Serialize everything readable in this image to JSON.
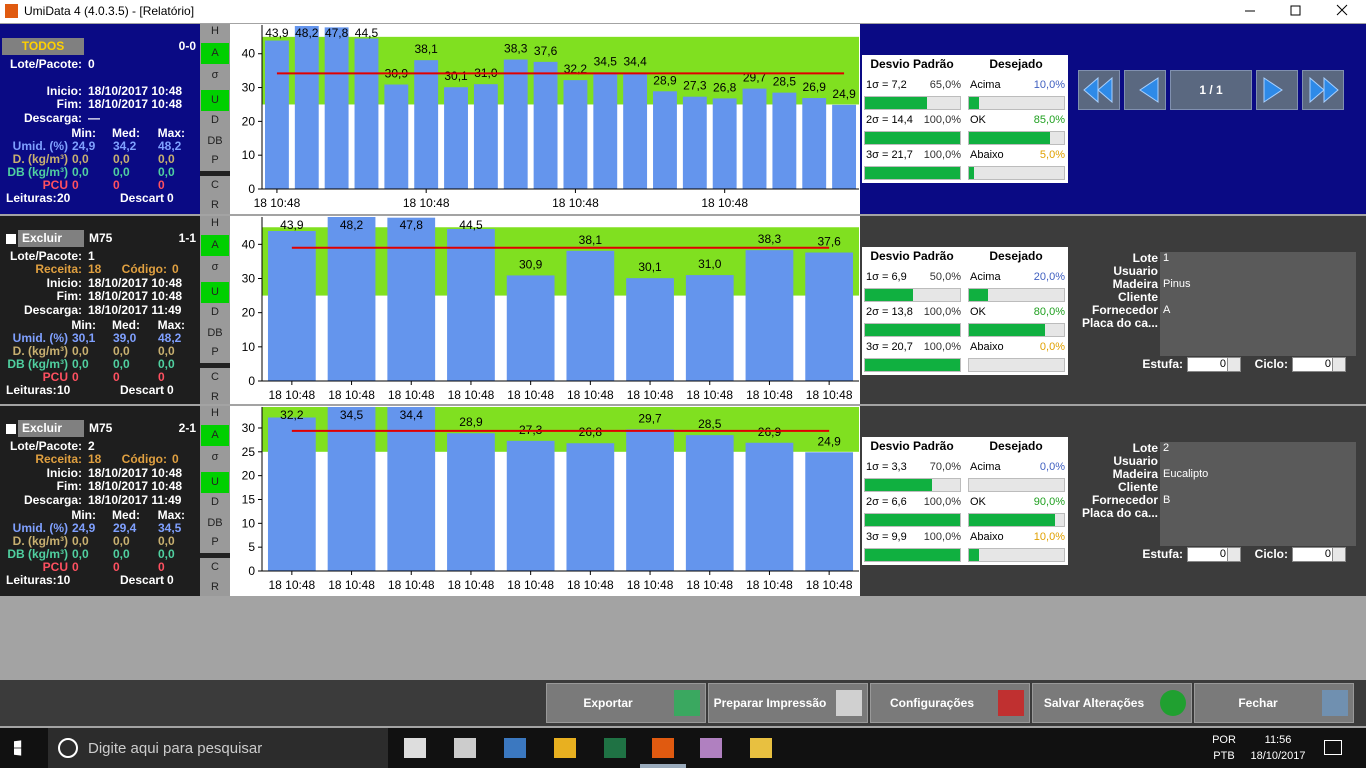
{
  "window": {
    "title": "UmiData 4 (4.0.3.5) - [Relatório]"
  },
  "nav": {
    "page": "1 / 1"
  },
  "side_buttons": [
    "H",
    "A",
    "σ",
    "U",
    "D",
    "DB",
    "P",
    "C",
    "R"
  ],
  "panels": [
    {
      "header": "TODOS",
      "code": "0-0",
      "fields": [
        {
          "label": "Lote/Pacote:",
          "value": "0"
        },
        {
          "label": "Inicio:",
          "value": "18/10/2017 10:48"
        },
        {
          "label": "Fim:",
          "value": "18/10/2017 10:48"
        },
        {
          "label": "Descarga:",
          "value": "—"
        }
      ],
      "stats": {
        "headers": [
          "Min:",
          "Med:",
          "Max:"
        ],
        "rows": [
          {
            "label": "Umid. (%)",
            "color": "#7fa0ff",
            "values": [
              "24,9",
              "34,2",
              "48,2"
            ]
          },
          {
            "label": "D. (kg/m³)",
            "color": "#c8b070",
            "values": [
              "0,0",
              "0,0",
              "0,0"
            ]
          },
          {
            "label": "DB (kg/m³)",
            "color": "#50d0a0",
            "values": [
              "0,0",
              "0,0",
              "0,0"
            ]
          },
          {
            "label": "PCU",
            "color": "#ff5060",
            "values": [
              "0",
              "0",
              "0"
            ]
          }
        ]
      },
      "readings": {
        "label": "Leituras:",
        "value": "20"
      },
      "discard": {
        "label": "Descart",
        "value": "0"
      },
      "chart": {
        "type": "bar",
        "categories": [
          "18 10:48",
          null,
          null,
          null,
          null,
          "18 10:48",
          null,
          null,
          null,
          null,
          "18 10:48",
          null,
          null,
          null,
          null,
          "18 10:48",
          null,
          null,
          null,
          null
        ],
        "values": [
          43.9,
          48.2,
          47.8,
          44.5,
          30.9,
          38.1,
          30.1,
          31.0,
          38.3,
          37.6,
          32.2,
          34.5,
          34.4,
          28.9,
          27.3,
          26.8,
          29.7,
          28.5,
          26.9,
          24.9
        ],
        "value_labels": [
          "43,9",
          "48,2",
          "47,8",
          "44,5",
          "30,9",
          "38,1",
          "30,1",
          "31,0",
          "38,3",
          "37,6",
          "32,2",
          "34,5",
          "34,4",
          "28,9",
          "27,3",
          "26,8",
          "29,7",
          "28,5",
          "26,9",
          "24,9"
        ],
        "color": "#6495ed",
        "ylim": [
          0,
          48.5
        ],
        "yticks": [
          0,
          10,
          20,
          30,
          40
        ],
        "band": [
          25,
          45
        ],
        "band_color": "#80e020",
        "mean": 34.2,
        "mean_color": "#e00000"
      },
      "deviation": {
        "headers": [
          "Desvio Padrão",
          "Desejado"
        ],
        "sigma": [
          {
            "label": "1σ = 7,2",
            "pct": 65,
            "pct_label": "65,0%"
          },
          {
            "label": "2σ = 14,4",
            "pct": 100,
            "pct_label": "100,0%"
          },
          {
            "label": "3σ = 21,7",
            "pct": 100,
            "pct_label": "100,0%"
          }
        ],
        "desired": [
          {
            "label": "Acima",
            "pct": 10,
            "pct_label": "10,0%",
            "color": "#4060c0"
          },
          {
            "label": "OK",
            "pct": 85,
            "pct_label": "85,0%",
            "color": "#20a020"
          },
          {
            "label": "Abaixo",
            "pct": 5,
            "pct_label": "5,0%",
            "color": "#e0a000"
          }
        ]
      }
    },
    {
      "exclude": "Excluir",
      "header": "M75",
      "code": "1-1",
      "fields": [
        {
          "label": "Lote/Pacote:",
          "value": "1"
        },
        {
          "label": "Inicio:",
          "value": "18/10/2017 10:48"
        },
        {
          "label": "Fim:",
          "value": "18/10/2017 10:48"
        },
        {
          "label": "Descarga:",
          "value": "18/10/2017 11:49"
        }
      ],
      "extra": [
        {
          "label": "Receita:",
          "value": "18"
        },
        {
          "label": "Código:",
          "value": "0"
        }
      ],
      "stats": {
        "headers": [
          "Min:",
          "Med:",
          "Max:"
        ],
        "rows": [
          {
            "label": "Umid. (%)",
            "color": "#7fa0ff",
            "values": [
              "30,1",
              "39,0",
              "48,2"
            ]
          },
          {
            "label": "D. (kg/m³)",
            "color": "#c8b070",
            "values": [
              "0,0",
              "0,0",
              "0,0"
            ]
          },
          {
            "label": "DB (kg/m³)",
            "color": "#50d0a0",
            "values": [
              "0,0",
              "0,0",
              "0,0"
            ]
          },
          {
            "label": "PCU",
            "color": "#ff5060",
            "values": [
              "0",
              "0",
              "0"
            ]
          }
        ]
      },
      "readings": {
        "label": "Leituras:",
        "value": "10"
      },
      "discard": {
        "label": "Descart",
        "value": "0"
      },
      "chart": {
        "type": "bar",
        "categories": [
          "18 10:48",
          "18 10:48",
          "18 10:48",
          "18 10:48",
          "18 10:48",
          "18 10:48",
          "18 10:48",
          "18 10:48",
          "18 10:48",
          "18 10:48"
        ],
        "values": [
          43.9,
          48.2,
          47.8,
          44.5,
          30.9,
          38.1,
          30.1,
          31.0,
          38.3,
          37.6
        ],
        "value_labels": [
          "43,9",
          "48,2",
          "47,8",
          "44,5",
          "30,9",
          "38,1",
          "30,1",
          "31,0",
          "38,3",
          "37,6"
        ],
        "color": "#6495ed",
        "ylim": [
          0,
          48
        ],
        "yticks": [
          0,
          10,
          20,
          30,
          40
        ],
        "band": [
          25,
          45
        ],
        "band_color": "#80e020",
        "mean": 39.0,
        "mean_color": "#e00000"
      },
      "deviation": {
        "headers": [
          "Desvio Padrão",
          "Desejado"
        ],
        "sigma": [
          {
            "label": "1σ = 6,9",
            "pct": 50,
            "pct_label": "50,0%"
          },
          {
            "label": "2σ = 13,8",
            "pct": 100,
            "pct_label": "100,0%"
          },
          {
            "label": "3σ = 20,7",
            "pct": 100,
            "pct_label": "100,0%"
          }
        ],
        "desired": [
          {
            "label": "Acima",
            "pct": 20,
            "pct_label": "20,0%",
            "color": "#4060c0"
          },
          {
            "label": "OK",
            "pct": 80,
            "pct_label": "80,0%",
            "color": "#20a020"
          },
          {
            "label": "Abaixo",
            "pct": 0,
            "pct_label": "0,0%",
            "color": "#e0a000"
          }
        ]
      },
      "info": [
        {
          "label": "Lote",
          "value": "1"
        },
        {
          "label": "Usuario"
        },
        {
          "label": "Madeira",
          "value": "Pinus"
        },
        {
          "label": "Cliente"
        },
        {
          "label": "Fornecedor",
          "value": "A"
        },
        {
          "label": "Placa do ca..."
        }
      ],
      "kiln": {
        "label": "Estufa:",
        "value": "0"
      },
      "cycle": {
        "label": "Ciclo:",
        "value": "0"
      }
    },
    {
      "exclude": "Excluir",
      "header": "M75",
      "code": "2-1",
      "fields": [
        {
          "label": "Lote/Pacote:",
          "value": "2"
        },
        {
          "label": "Inicio:",
          "value": "18/10/2017 10:48"
        },
        {
          "label": "Fim:",
          "value": "18/10/2017 10:48"
        },
        {
          "label": "Descarga:",
          "value": "18/10/2017 11:49"
        }
      ],
      "extra": [
        {
          "label": "Receita:",
          "value": "18"
        },
        {
          "label": "Código:",
          "value": "0"
        }
      ],
      "stats": {
        "headers": [
          "Min:",
          "Med:",
          "Max:"
        ],
        "rows": [
          {
            "label": "Umid. (%)",
            "color": "#7fa0ff",
            "values": [
              "24,9",
              "29,4",
              "34,5"
            ]
          },
          {
            "label": "D. (kg/m³)",
            "color": "#c8b070",
            "values": [
              "0,0",
              "0,0",
              "0,0"
            ]
          },
          {
            "label": "DB (kg/m³)",
            "color": "#50d0a0",
            "values": [
              "0,0",
              "0,0",
              "0,0"
            ]
          },
          {
            "label": "PCU",
            "color": "#ff5060",
            "values": [
              "0",
              "0",
              "0"
            ]
          }
        ]
      },
      "readings": {
        "label": "Leituras:",
        "value": "10"
      },
      "discard": {
        "label": "Descart",
        "value": "0"
      },
      "chart": {
        "type": "bar",
        "categories": [
          "18 10:48",
          "18 10:48",
          "18 10:48",
          "18 10:48",
          "18 10:48",
          "18 10:48",
          "18 10:48",
          "18 10:48",
          "18 10:48",
          "18 10:48"
        ],
        "values": [
          32.2,
          34.5,
          34.4,
          28.9,
          27.3,
          26.8,
          29.7,
          28.5,
          26.9,
          24.9
        ],
        "value_labels": [
          "32,2",
          "34,5",
          "34,4",
          "28,9",
          "27,3",
          "26,8",
          "29,7",
          "28,5",
          "26,9",
          "24,9"
        ],
        "color": "#6495ed",
        "ylim": [
          0,
          34.4
        ],
        "yticks": [
          0,
          5,
          10,
          15,
          20,
          25,
          30
        ],
        "band": [
          25,
          35
        ],
        "band_color": "#80e020",
        "mean": 29.4,
        "mean_color": "#e00000"
      },
      "deviation": {
        "headers": [
          "Desvio Padrão",
          "Desejado"
        ],
        "sigma": [
          {
            "label": "1σ = 3,3",
            "pct": 70,
            "pct_label": "70,0%"
          },
          {
            "label": "2σ = 6,6",
            "pct": 100,
            "pct_label": "100,0%"
          },
          {
            "label": "3σ = 9,9",
            "pct": 100,
            "pct_label": "100,0%"
          }
        ],
        "desired": [
          {
            "label": "Acima",
            "pct": 0,
            "pct_label": "0,0%",
            "color": "#4060c0"
          },
          {
            "label": "OK",
            "pct": 90,
            "pct_label": "90,0%",
            "color": "#20a020"
          },
          {
            "label": "Abaixo",
            "pct": 10,
            "pct_label": "10,0%",
            "color": "#e0a000"
          }
        ]
      },
      "info": [
        {
          "label": "Lote",
          "value": "2"
        },
        {
          "label": "Usuario"
        },
        {
          "label": "Madeira",
          "value": "Eucalipto"
        },
        {
          "label": "Cliente"
        },
        {
          "label": "Fornecedor",
          "value": "B"
        },
        {
          "label": "Placa do ca..."
        }
      ],
      "kiln": {
        "label": "Estufa:",
        "value": "0"
      },
      "cycle": {
        "label": "Ciclo:",
        "value": "0"
      }
    }
  ],
  "buttons": [
    "Exportar",
    "Preparar Impressão",
    "Configurações",
    "Salvar Alterações",
    "Fechar"
  ],
  "taskbar": {
    "search": "Digite aqui para pesquisar",
    "language": "POR",
    "layout": "PTB",
    "time": "11:56",
    "date": "18/10/2017"
  }
}
